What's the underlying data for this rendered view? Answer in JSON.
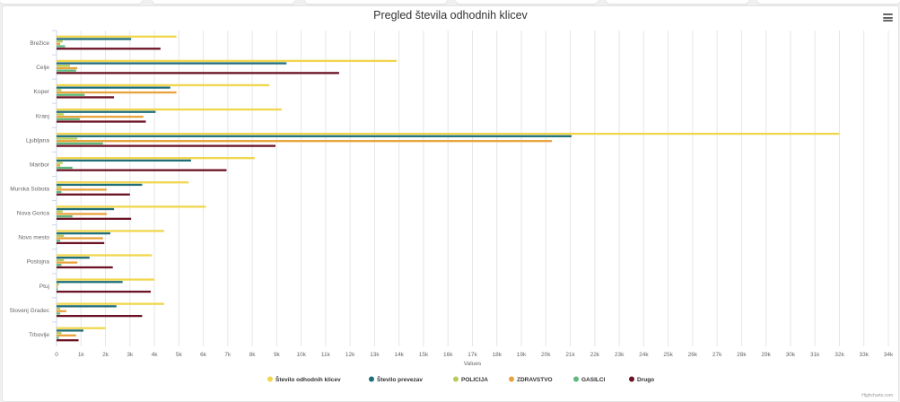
{
  "chart_data": {
    "type": "bar",
    "orientation": "horizontal",
    "title": "Pregled števila odhodnih klicev",
    "xlabel": "Values",
    "xlim": [
      0,
      34000
    ],
    "tick_step": 1000,
    "tick_labels": [
      "0",
      "1k",
      "2k",
      "3k",
      "4k",
      "5k",
      "6k",
      "7k",
      "8k",
      "9k",
      "10k",
      "11k",
      "12k",
      "13k",
      "14k",
      "15k",
      "16k",
      "17k",
      "18k",
      "19k",
      "20k",
      "21k",
      "22k",
      "23k",
      "24k",
      "25k",
      "26k",
      "27k",
      "28k",
      "29k",
      "30k",
      "31k",
      "32k",
      "33k",
      "34k"
    ],
    "grid": true,
    "legend_position": "bottom",
    "categories": [
      "Brežice",
      "Celje",
      "Koper",
      "Kranj",
      "Ljubljana",
      "Maribor",
      "Murska Sobota",
      "Nova Gorica",
      "Novo mesto",
      "Postojna",
      "Ptuj",
      "Slovenj Gradec",
      "Trbovlje"
    ],
    "series": [
      {
        "name": "Število odhodnih klicev",
        "color": "#f1d64c",
        "values": [
          4900,
          13900,
          8700,
          9200,
          32000,
          8100,
          5400,
          6100,
          4400,
          3900,
          4000,
          4400,
          2000
        ]
      },
      {
        "name": "Število prevezav",
        "color": "#1f6e7a",
        "values": [
          3050,
          9400,
          4650,
          4050,
          21050,
          5500,
          3500,
          2350,
          2200,
          1350,
          2700,
          2450,
          1100
        ]
      },
      {
        "name": "POLICIJA",
        "color": "#b7cb5a",
        "values": [
          250,
          550,
          200,
          300,
          850,
          250,
          200,
          250,
          300,
          300,
          100,
          150,
          200
        ]
      },
      {
        "name": "ZDRAVSTVO",
        "color": "#e9a33b",
        "values": [
          150,
          850,
          4900,
          3550,
          20250,
          150,
          2050,
          2050,
          1900,
          850,
          50,
          400,
          800
        ]
      },
      {
        "name": "GASILCI",
        "color": "#5fb97d",
        "values": [
          350,
          800,
          1150,
          950,
          1900,
          650,
          200,
          650,
          150,
          200,
          50,
          150,
          100
        ]
      },
      {
        "name": "Drugo",
        "color": "#6b1224",
        "values": [
          4250,
          11550,
          2350,
          3650,
          8950,
          6950,
          3000,
          3050,
          1950,
          2300,
          3850,
          3500,
          900
        ]
      }
    ]
  },
  "credits": "Highcharts.com",
  "menu_icon": "hamburger-menu-icon"
}
